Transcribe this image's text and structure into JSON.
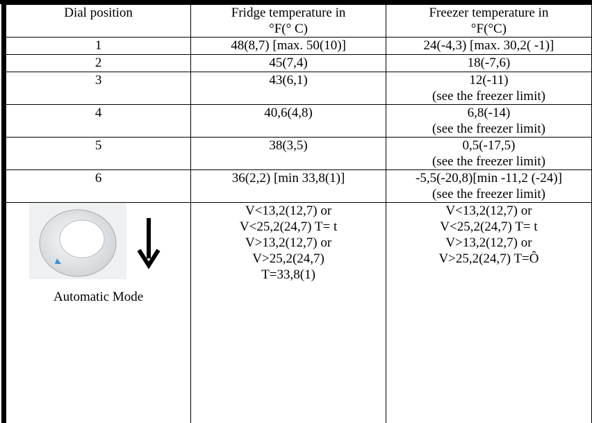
{
  "table": {
    "header": [
      [
        "Dial position"
      ],
      [
        "Fridge temperature in",
        "°F(° C)"
      ],
      [
        "Freezer temperature in",
        "°F(°C)"
      ]
    ],
    "rows": [
      [
        [
          "1"
        ],
        [
          "48(8,7) [max. 50(10)]"
        ],
        [
          "24(-4,3) [max. 30,2( -1)]"
        ]
      ],
      [
        [
          "2"
        ],
        [
          "45(7,4)"
        ],
        [
          "18(-7,6)"
        ]
      ],
      [
        [
          "3"
        ],
        [
          "43(6,1)"
        ],
        [
          "12(-11)",
          "(see the freezer limit)"
        ]
      ],
      [
        [
          "4"
        ],
        [
          "40,6(4,8)"
        ],
        [
          "6,8(-14)",
          "(see the freezer limit)"
        ]
      ],
      [
        [
          "5"
        ],
        [
          "38(3,5)"
        ],
        [
          "0,5(-17,5)",
          "(see the freezer limit)"
        ]
      ],
      [
        [
          "6"
        ],
        [
          "36(2,2) [min 33,8(1)]"
        ],
        [
          "-5,5(-20,8)[min -11,2 (-24)]",
          "(see the freezer limit)"
        ]
      ]
    ],
    "auto": {
      "label": "Automatic Mode",
      "fridge": [
        [
          "V<13,2(12,7) or",
          "V<25,2(24,7) T=  t"
        ],
        [
          "V>13,2(12,7) or",
          "V>25,2(24,7)",
          "T=33,8(1)"
        ]
      ],
      "freezer": [
        [
          "V<13,2(12,7) or",
          "V<25,2(24,7) T=  t"
        ],
        [
          "V>13,2(12,7) or",
          "V>25,2(24,7) T=Ô"
        ]
      ]
    }
  }
}
